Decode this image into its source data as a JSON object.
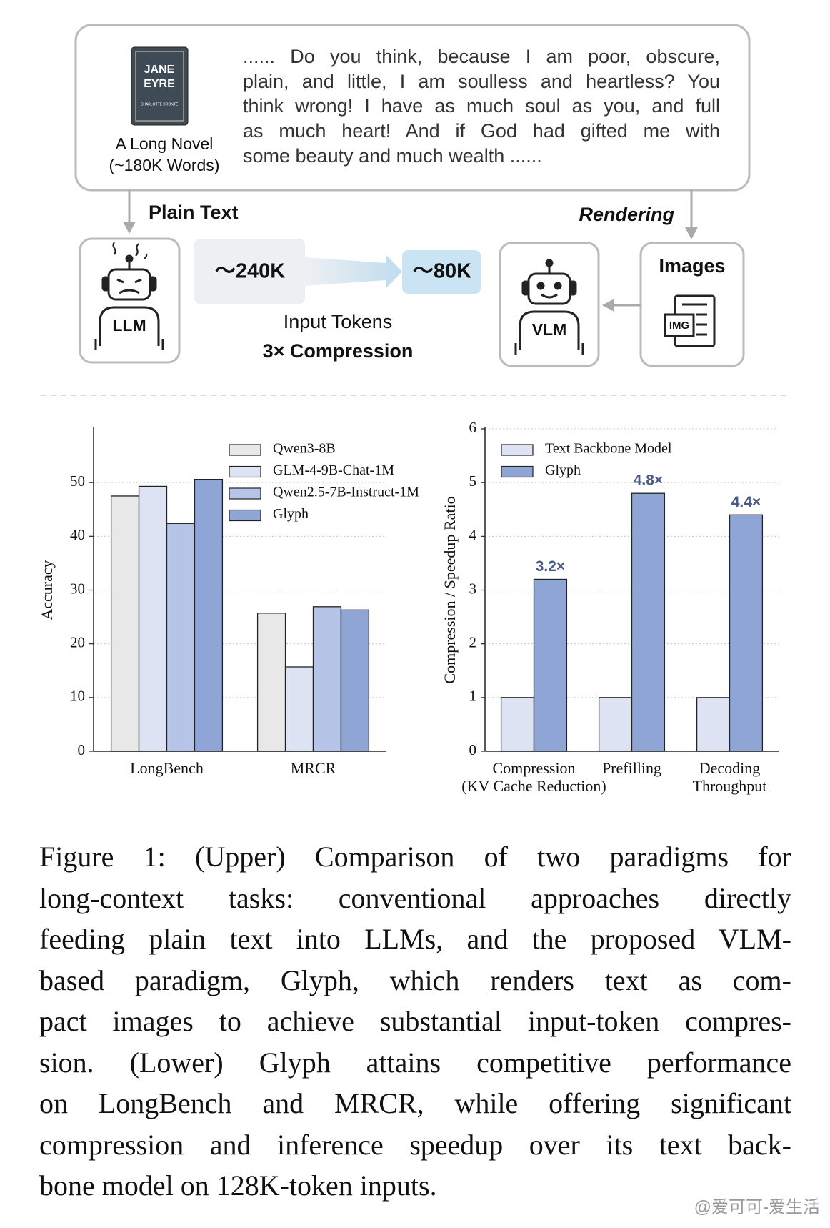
{
  "diagram": {
    "book_title": [
      "JANE",
      "EYRE"
    ],
    "book_author": "CHARLOTTE BRONTË",
    "novel_label": "A Long Novel",
    "novel_words": "(~180K Words)",
    "excerpt": [
      "...... Do you think, because I am poor, obscure,",
      "plain, and little, I am soulless and heartless? You",
      "think wrong! I have as much soul as you, and full",
      "as much heart! And if God had gifted me with",
      "some beauty and much wealth ......"
    ],
    "plain_text": "Plain Text",
    "rendering": "Rendering",
    "llm": "LLM",
    "vlm": "VLM",
    "images": "Images",
    "img": "IMG",
    "tokens_in": "～240K",
    "tokens_out": "～80K",
    "input_tokens": "Input Tokens",
    "compression": "3× Compression"
  },
  "chart_data": [
    {
      "type": "bar",
      "ylabel": "Accuracy",
      "categories": [
        "LongBench",
        "MRCR"
      ],
      "series": [
        {
          "name": "Qwen3-8B",
          "color": "#e8e8e8",
          "values": [
            47.5,
            25.7
          ]
        },
        {
          "name": "GLM-4-9B-Chat-1M",
          "color": "#dde3f3",
          "values": [
            49.3,
            15.7
          ]
        },
        {
          "name": "Qwen2.5-7B-Instruct-1M",
          "color": "#b6c4e8",
          "values": [
            42.4,
            26.9
          ]
        },
        {
          "name": "Glyph",
          "color": "#8fa5d6",
          "values": [
            50.6,
            26.3
          ]
        }
      ],
      "ylim": [
        0,
        60
      ],
      "yticks": [
        0,
        10,
        20,
        30,
        40,
        50
      ],
      "grid": true,
      "legend": "upper right"
    },
    {
      "type": "bar",
      "ylabel": "Compression / Speedup Ratio",
      "categories": [
        [
          "Compression",
          "(KV Cache Reduction)"
        ],
        [
          "Prefilling"
        ],
        [
          "Decoding",
          "Throughput"
        ]
      ],
      "series": [
        {
          "name": "Text Backbone Model",
          "color": "#dde3f3",
          "values": [
            1,
            1,
            1
          ]
        },
        {
          "name": "Glyph",
          "color": "#8fa5d6",
          "values": [
            3.2,
            4.8,
            4.4
          ],
          "value_labels": [
            "3.2×",
            "4.8×",
            "4.4×"
          ]
        }
      ],
      "ylim": [
        0,
        6
      ],
      "yticks": [
        0,
        1,
        2,
        3,
        4,
        5,
        6
      ],
      "grid": true,
      "legend": "upper left"
    }
  ],
  "caption": [
    "Figure 1: (Upper) Comparison of two paradigms for",
    "long-context tasks: conventional approaches directly",
    "feeding plain text into LLMs, and the proposed VLM-",
    "based paradigm, Glyph, which renders text as com-",
    "pact images to achieve substantial input-token compres-",
    "sion. (Lower) Glyph attains competitive performance",
    "on LongBench and MRCR, while offering significant",
    "compression and inference speedup over its text back-",
    "bone model on 128K-token inputs."
  ],
  "watermark": "@爱可可-爱生活"
}
